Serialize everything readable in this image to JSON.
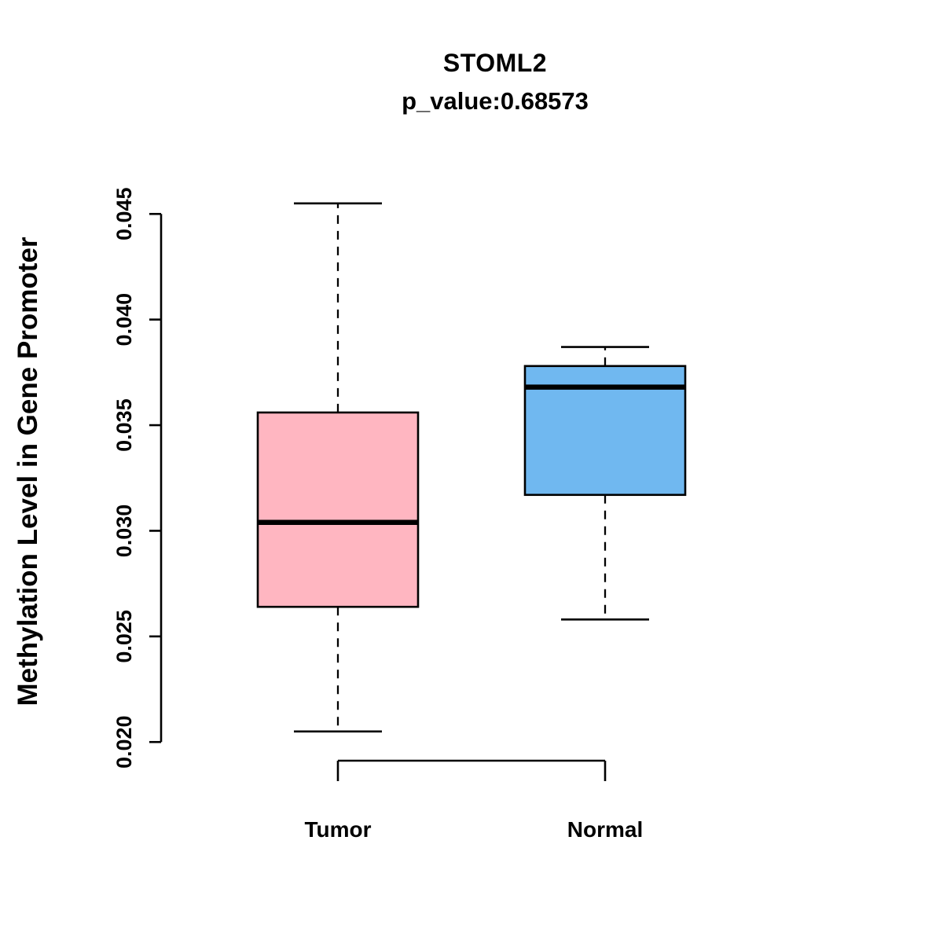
{
  "chart_data": {
    "type": "boxplot",
    "title": "STOML2",
    "subtitle": "p_value:0.68573",
    "ylabel": "Methylation Level in Gene Promoter",
    "categories": [
      "Tumor",
      "Normal"
    ],
    "yticks": [
      0.02,
      0.025,
      0.03,
      0.035,
      0.04,
      0.045
    ],
    "ylim": [
      0.0196,
      0.0462
    ],
    "tick_format_decimals": 3,
    "grid": "off",
    "legend": "none",
    "axis_color": "#000000",
    "series": [
      {
        "name": "Tumor",
        "color": "#FFB6C1",
        "whisker_low": 0.0205,
        "q1": 0.0264,
        "median": 0.0304,
        "q3": 0.0356,
        "whisker_high": 0.0455
      },
      {
        "name": "Normal",
        "color": "#70B8F0",
        "whisker_low": 0.0258,
        "q1": 0.0317,
        "median": 0.0368,
        "q3": 0.0378,
        "whisker_high": 0.0387
      }
    ]
  }
}
